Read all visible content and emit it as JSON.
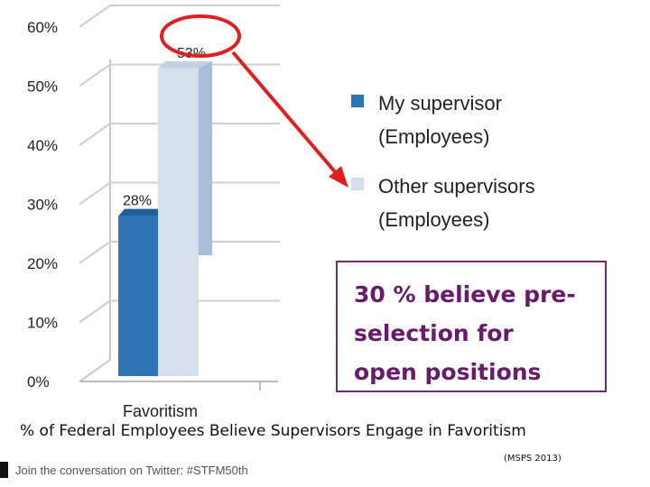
{
  "chart_data": {
    "type": "bar",
    "categories": [
      "Favoritism"
    ],
    "series": [
      {
        "name": "My supervisor (Employees)",
        "values": [
          28
        ],
        "color": "#2e75b6"
      },
      {
        "name": "Other supervisors (Employees)",
        "values": [
          53
        ],
        "color": "#d6e0ec"
      }
    ],
    "data_labels": [
      "28%",
      "53%"
    ],
    "legend_lines": [
      [
        "My supervisor",
        "(Employees)"
      ],
      [
        "Other supervisors",
        "(Employees)"
      ]
    ],
    "yticks": [
      "0%",
      "10%",
      "20%",
      "30%",
      "40%",
      "50%",
      "60%"
    ],
    "ylim": [
      0,
      60
    ],
    "grid": true,
    "legend_position": "right",
    "highlight_color": "#e02020"
  },
  "callout_lines": [
    "30 % believe pre-",
    "selection for",
    "open positions"
  ],
  "caption": "% of Federal Employees Believe Supervisors Engage in Favoritism",
  "source": "(MSPS 2013)",
  "footer_text": "Join the conversation on Twitter: #STFM50th"
}
